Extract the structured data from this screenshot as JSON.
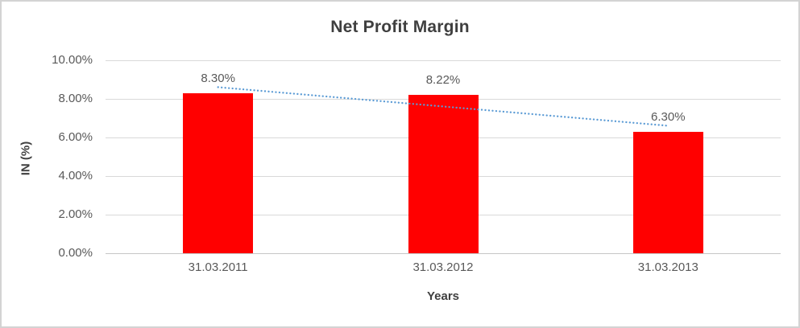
{
  "chart_data": {
    "type": "bar",
    "title": "Net Profit Margin",
    "xlabel": "Years",
    "ylabel": "IN (%)",
    "categories": [
      "31.03.2011",
      "31.03.2012",
      "31.03.2013"
    ],
    "values": [
      8.3,
      8.22,
      6.3
    ],
    "data_labels": [
      "8.30%",
      "8.22%",
      "6.30%"
    ],
    "y_tick_values": [
      0,
      2,
      4,
      6,
      8,
      10
    ],
    "y_tick_labels": [
      "0.00%",
      "2.00%",
      "4.00%",
      "6.00%",
      "8.00%",
      "10.00%"
    ],
    "ylim": [
      0,
      10
    ],
    "grid": "horizontal",
    "legend": "none",
    "series_name": "Net Profit Margin",
    "trendline": {
      "type": "linear",
      "style": "dotted"
    }
  },
  "colors": {
    "bar": "#ff0000",
    "trendline": "#5b9bd5",
    "gridline": "#d9d9d9",
    "axis_line": "#c6c6c6",
    "title_text": "#3f3f3f",
    "tick_text": "#595959",
    "frame_border": "#d3d3d3",
    "background": "#ffffff"
  }
}
